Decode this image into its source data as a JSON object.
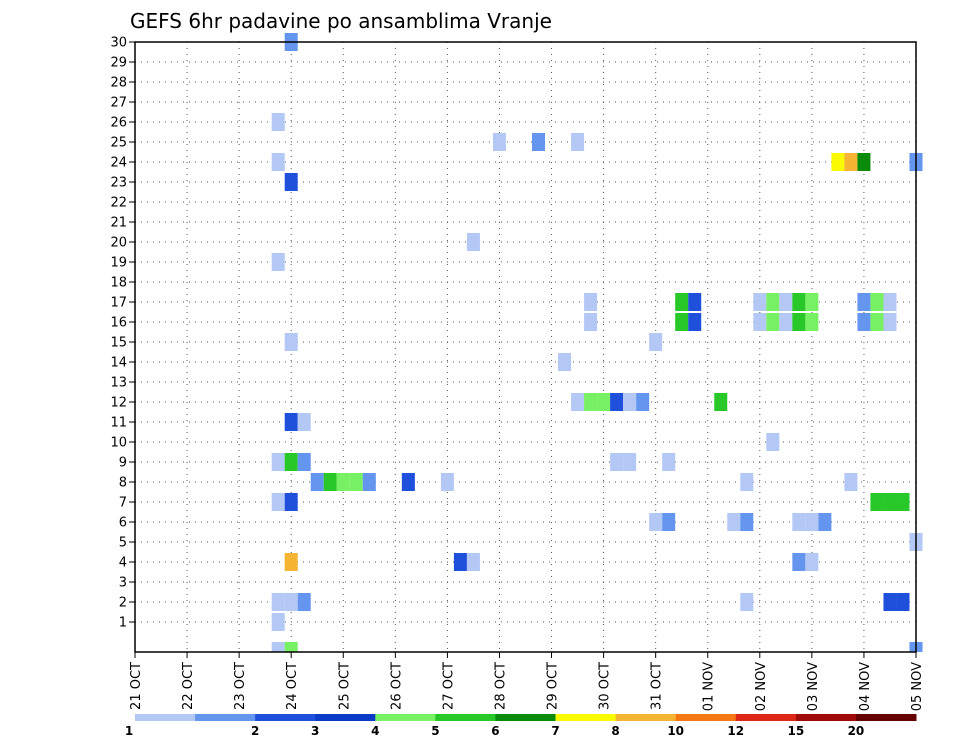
{
  "chart_data": {
    "type": "heatmap",
    "title": "GEFS 6hr padavine po ansamblima Vranje",
    "xlabel": "",
    "ylabel": "",
    "x_tick_labels": [
      "21 OCT",
      "22 OCT",
      "23 OCT",
      "24 OCT",
      "25 OCT",
      "26 OCT",
      "27 OCT",
      "28 OCT",
      "29 OCT",
      "30 OCT",
      "31 OCT",
      "01 NOV",
      "02 NOV",
      "03 NOV",
      "04 NOV",
      "05 NOV"
    ],
    "x_range_steps": [
      0,
      60
    ],
    "steps_per_day": 4,
    "y_range": [
      0,
      30
    ],
    "y_ticks": [
      1,
      2,
      3,
      4,
      5,
      6,
      7,
      8,
      9,
      10,
      11,
      12,
      13,
      14,
      15,
      16,
      17,
      18,
      19,
      20,
      21,
      22,
      23,
      24,
      25,
      26,
      27,
      28,
      29,
      30
    ],
    "grid": true,
    "legend": {
      "position": "bottom",
      "labels": [
        "1",
        "2",
        "3",
        "4",
        "5",
        "6",
        "7",
        "8",
        "10",
        "12",
        "15",
        "20"
      ],
      "colors": [
        "#b4c8f5",
        "#6496f0",
        "#1e50dc",
        "#0a3cc8",
        "#78f064",
        "#28c828",
        "#0a8c0a",
        "#fafa00",
        "#f5b432",
        "#f57814",
        "#dc2814",
        "#a00a0a",
        "#640000"
      ]
    },
    "cells_note": "each cell: [ensemble member, time step (6h, 0 = 21 OCT 00z), color class 1-12]",
    "cells": [
      [
        30,
        12,
        2
      ],
      [
        26,
        11,
        1
      ],
      [
        25,
        28,
        1
      ],
      [
        25,
        31,
        2
      ],
      [
        25,
        34,
        1
      ],
      [
        24,
        11,
        1
      ],
      [
        24,
        54,
        8
      ],
      [
        24,
        55,
        9
      ],
      [
        24,
        56,
        7
      ],
      [
        24,
        60,
        2
      ],
      [
        23,
        12,
        3
      ],
      [
        20,
        26,
        1
      ],
      [
        19,
        11,
        1
      ],
      [
        17,
        35,
        1
      ],
      [
        17,
        42,
        6
      ],
      [
        17,
        43,
        3
      ],
      [
        17,
        48,
        1
      ],
      [
        17,
        49,
        5
      ],
      [
        17,
        50,
        1
      ],
      [
        17,
        51,
        6
      ],
      [
        17,
        52,
        5
      ],
      [
        17,
        56,
        2
      ],
      [
        17,
        57,
        5
      ],
      [
        17,
        58,
        1
      ],
      [
        16,
        35,
        1
      ],
      [
        16,
        42,
        6
      ],
      [
        16,
        43,
        3
      ],
      [
        16,
        48,
        1
      ],
      [
        16,
        49,
        5
      ],
      [
        16,
        50,
        1
      ],
      [
        16,
        51,
        6
      ],
      [
        16,
        52,
        5
      ],
      [
        16,
        56,
        2
      ],
      [
        16,
        57,
        5
      ],
      [
        16,
        58,
        1
      ],
      [
        15,
        40,
        1
      ],
      [
        15,
        12,
        1
      ],
      [
        14,
        33,
        1
      ],
      [
        12,
        34,
        1
      ],
      [
        12,
        35,
        5
      ],
      [
        12,
        36,
        5
      ],
      [
        12,
        37,
        3
      ],
      [
        12,
        38,
        1
      ],
      [
        12,
        39,
        2
      ],
      [
        12,
        45,
        6
      ],
      [
        11,
        12,
        3
      ],
      [
        11,
        13,
        1
      ],
      [
        10,
        49,
        1
      ],
      [
        9,
        11,
        1
      ],
      [
        9,
        12,
        6
      ],
      [
        9,
        13,
        2
      ],
      [
        9,
        37,
        1
      ],
      [
        9,
        38,
        1
      ],
      [
        9,
        41,
        1
      ],
      [
        8,
        14,
        2
      ],
      [
        8,
        15,
        6
      ],
      [
        8,
        16,
        5
      ],
      [
        8,
        17,
        5
      ],
      [
        8,
        18,
        2
      ],
      [
        8,
        21,
        3
      ],
      [
        8,
        24,
        1
      ],
      [
        8,
        47,
        1
      ],
      [
        8,
        55,
        1
      ],
      [
        7,
        11,
        1
      ],
      [
        7,
        12,
        3
      ],
      [
        7,
        57,
        6
      ],
      [
        7,
        58,
        6
      ],
      [
        7,
        59,
        6
      ],
      [
        6,
        40,
        1
      ],
      [
        6,
        41,
        2
      ],
      [
        6,
        46,
        1
      ],
      [
        6,
        47,
        2
      ],
      [
        6,
        51,
        1
      ],
      [
        6,
        52,
        1
      ],
      [
        6,
        53,
        2
      ],
      [
        5,
        60,
        1
      ],
      [
        4,
        12,
        9
      ],
      [
        4,
        25,
        3
      ],
      [
        4,
        26,
        1
      ],
      [
        4,
        51,
        2
      ],
      [
        4,
        52,
        1
      ],
      [
        2,
        11,
        1
      ],
      [
        2,
        12,
        1
      ],
      [
        2,
        13,
        2
      ],
      [
        2,
        47,
        1
      ],
      [
        2,
        58,
        3
      ],
      [
        2,
        59,
        3
      ],
      [
        1,
        11,
        1
      ],
      [
        0,
        11,
        1
      ],
      [
        0,
        12,
        5
      ],
      [
        0,
        60,
        2
      ]
    ]
  }
}
